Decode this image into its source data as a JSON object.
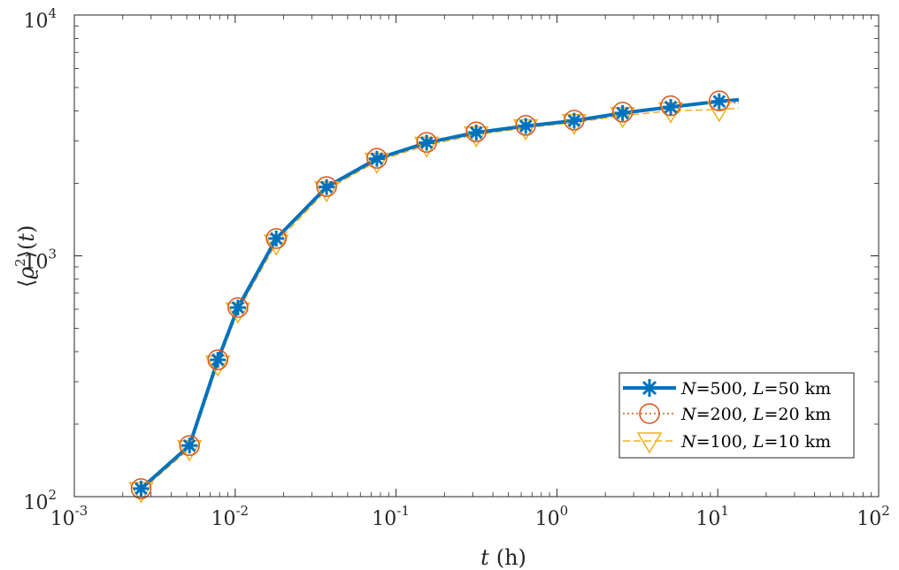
{
  "chart_data": {
    "type": "line",
    "xscale": "log",
    "yscale": "log",
    "xlim": [
      0.001,
      100
    ],
    "ylim": [
      100,
      10000
    ],
    "xticks": [
      {
        "base": "10",
        "exp": "-3"
      },
      {
        "base": "10",
        "exp": "-2"
      },
      {
        "base": "10",
        "exp": "-1"
      },
      {
        "base": "10",
        "exp": "0"
      },
      {
        "base": "10",
        "exp": "1"
      },
      {
        "base": "10",
        "exp": "2"
      }
    ],
    "yticks": [
      {
        "base": "10",
        "exp": "2"
      },
      {
        "base": "10",
        "exp": "3"
      },
      {
        "base": "10",
        "exp": "4"
      }
    ],
    "xlabel": {
      "var": "t",
      "unit": "(h)"
    },
    "ylabel": {
      "open": "⟨",
      "var": "ϱ",
      "sup": "2",
      "close": "⟩(",
      "var2": "t",
      "end": ")"
    },
    "legend_position": "lower-right",
    "x": [
      0.0026,
      0.0052,
      0.0078,
      0.0104,
      0.018,
      0.037,
      0.076,
      0.155,
      0.315,
      0.64,
      1.28,
      2.56,
      5.1,
      10.2,
      13.5
    ],
    "series": [
      {
        "name": "N=500, L=50 km",
        "legend_parts": [
          "N",
          "=500, ",
          "L",
          "=50 km"
        ],
        "color": "#0072BD",
        "marker": "asterisk",
        "line": "solid",
        "values": [
          108,
          163,
          370,
          610,
          1180,
          1930,
          2530,
          2950,
          3250,
          3460,
          3640,
          3920,
          4150,
          4380,
          4450
        ]
      },
      {
        "name": "N=200, L=20 km",
        "legend_parts": [
          "N",
          "=200, ",
          "L",
          "=20 km"
        ],
        "color": "#D95319",
        "marker": "circle",
        "line": "dotted",
        "values": [
          108,
          163,
          370,
          610,
          1180,
          1940,
          2540,
          2960,
          3270,
          3480,
          3660,
          3950,
          4200,
          4400,
          4300
        ]
      },
      {
        "name": "N=100, L=10 km",
        "legend_parts": [
          "N",
          "=100, ",
          "L",
          "=10 km"
        ],
        "color": "#EDB120",
        "marker": "triangle-down",
        "line": "dashed",
        "values": [
          106,
          158,
          355,
          590,
          1130,
          1880,
          2470,
          2880,
          3180,
          3400,
          3580,
          3820,
          4000,
          4050,
          4100
        ]
      }
    ]
  }
}
